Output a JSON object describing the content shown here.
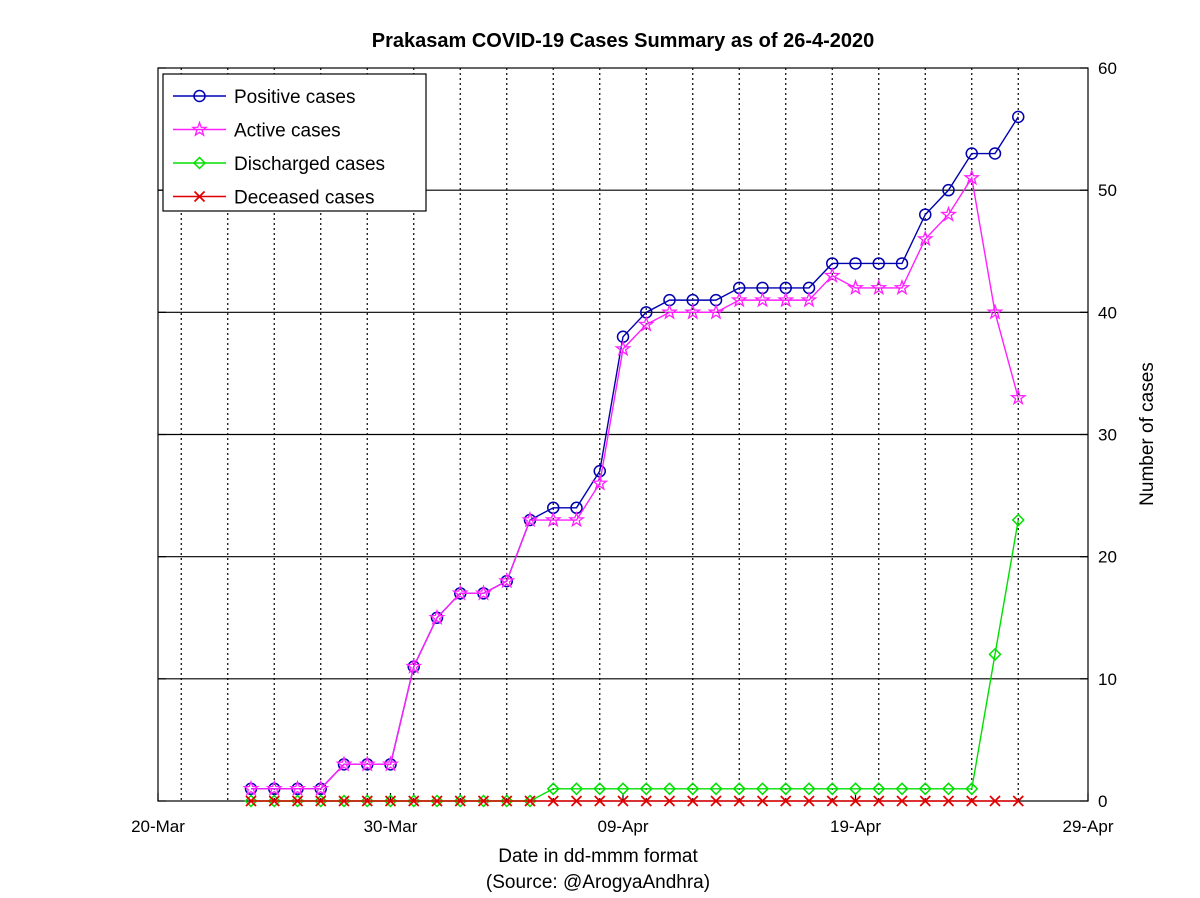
{
  "chart_data": {
    "type": "line",
    "title": "Prakasam COVID-19 Cases Summary as of 26-4-2020",
    "xlabel": "Date in dd-mmm format",
    "source": "(Source: @ArogyaAndhra)",
    "ylabel": "Number of cases",
    "xlim": [
      "2020-03-20",
      "2020-04-29"
    ],
    "ylim": [
      0,
      60
    ],
    "x_ticks": [
      {
        "date": "2020-03-20",
        "label": "20-Mar"
      },
      {
        "date": "2020-03-30",
        "label": "30-Mar"
      },
      {
        "date": "2020-04-09",
        "label": "09-Apr"
      },
      {
        "date": "2020-04-19",
        "label": "19-Apr"
      },
      {
        "date": "2020-04-29",
        "label": "29-Apr"
      }
    ],
    "y_ticks": [
      0,
      10,
      20,
      30,
      40,
      50,
      60
    ],
    "y_axis_side": "right",
    "grid": {
      "x": "dotted-daily",
      "y": "solid"
    },
    "legend_position": "top-left",
    "x": [
      "2020-03-24",
      "2020-03-25",
      "2020-03-26",
      "2020-03-27",
      "2020-03-28",
      "2020-03-29",
      "2020-03-30",
      "2020-03-31",
      "2020-04-01",
      "2020-04-02",
      "2020-04-03",
      "2020-04-04",
      "2020-04-05",
      "2020-04-06",
      "2020-04-07",
      "2020-04-08",
      "2020-04-09",
      "2020-04-10",
      "2020-04-11",
      "2020-04-12",
      "2020-04-13",
      "2020-04-14",
      "2020-04-15",
      "2020-04-16",
      "2020-04-17",
      "2020-04-18",
      "2020-04-19",
      "2020-04-20",
      "2020-04-21",
      "2020-04-22",
      "2020-04-23",
      "2020-04-24",
      "2020-04-25",
      "2020-04-26"
    ],
    "series": [
      {
        "name": "Positive cases",
        "color": "#0000b0",
        "marker": "circle",
        "values": [
          1,
          1,
          1,
          1,
          3,
          3,
          3,
          11,
          15,
          17,
          17,
          18,
          23,
          24,
          24,
          27,
          38,
          40,
          41,
          41,
          41,
          42,
          42,
          42,
          42,
          44,
          44,
          44,
          44,
          48,
          50,
          53,
          53,
          56
        ]
      },
      {
        "name": "Active cases",
        "color": "#ff1fff",
        "marker": "star",
        "values": [
          1,
          1,
          1,
          1,
          3,
          3,
          3,
          11,
          15,
          17,
          17,
          18,
          23,
          23,
          23,
          26,
          37,
          39,
          40,
          40,
          40,
          41,
          41,
          41,
          41,
          43,
          42,
          42,
          42,
          46,
          48,
          51,
          40,
          33
        ]
      },
      {
        "name": "Discharged cases",
        "color": "#00e000",
        "marker": "diamond",
        "values": [
          0,
          0,
          0,
          0,
          0,
          0,
          0,
          0,
          0,
          0,
          0,
          0,
          0,
          1,
          1,
          1,
          1,
          1,
          1,
          1,
          1,
          1,
          1,
          1,
          1,
          1,
          1,
          1,
          1,
          1,
          1,
          1,
          12,
          23
        ]
      },
      {
        "name": "Deceased cases",
        "color": "#e00000",
        "marker": "x",
        "values": [
          0,
          0,
          0,
          0,
          0,
          0,
          0,
          0,
          0,
          0,
          0,
          0,
          0,
          0,
          0,
          0,
          0,
          0,
          0,
          0,
          0,
          0,
          0,
          0,
          0,
          0,
          0,
          0,
          0,
          0,
          0,
          0,
          0,
          0
        ]
      }
    ]
  }
}
